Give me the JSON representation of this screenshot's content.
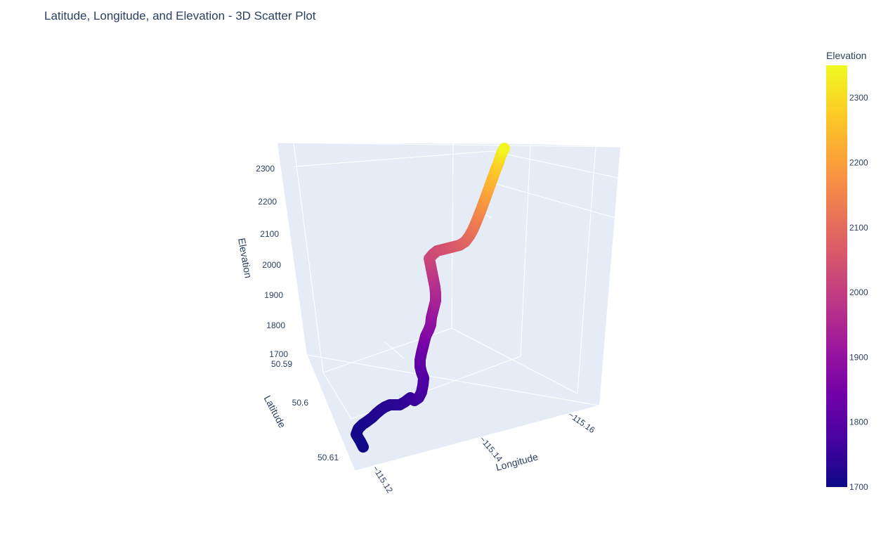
{
  "chart_data": {
    "type": "scatter3d",
    "title": "Latitude, Longitude, and Elevation - 3D Scatter Plot",
    "axes": {
      "x": {
        "label": "Longitude",
        "ticks": [
          "−115.16",
          "−115.14",
          "−115.12"
        ]
      },
      "y": {
        "label": "Latitude",
        "ticks": [
          "50.59",
          "50.6",
          "50.61"
        ]
      },
      "z": {
        "label": "Elevation",
        "ticks": [
          "1700",
          "1800",
          "1900",
          "2000",
          "2100",
          "2200",
          "2300"
        ],
        "range": [
          1700,
          2350
        ]
      }
    },
    "colorbar": {
      "title": "Elevation",
      "ticks": [
        "1700",
        "1800",
        "1900",
        "2000",
        "2100",
        "2200",
        "2300"
      ],
      "range": [
        1700,
        2350
      ],
      "colorscale": [
        "#0d0887",
        "#46039f",
        "#7201a8",
        "#9c179e",
        "#bd3786",
        "#d8576b",
        "#ed7953",
        "#fb9f3a",
        "#fdca26",
        "#f0f921"
      ]
    },
    "points_elevation_profile": [
      1700,
      1702,
      1705,
      1708,
      1712,
      1716,
      1720,
      1724,
      1728,
      1730,
      1732,
      1735,
      1738,
      1742,
      1748,
      1755,
      1762,
      1770,
      1778,
      1786,
      1795,
      1805,
      1815,
      1826,
      1838,
      1850,
      1862,
      1875,
      1888,
      1900,
      1912,
      1925,
      1938,
      1950,
      1962,
      1975,
      1990,
      2005,
      2018,
      2028,
      2035,
      2042,
      2050,
      2060,
      2072,
      2085,
      2100,
      2115,
      2130,
      2148,
      2166,
      2185,
      2205,
      2225,
      2245,
      2265,
      2285,
      2305,
      2325,
      2345
    ]
  }
}
